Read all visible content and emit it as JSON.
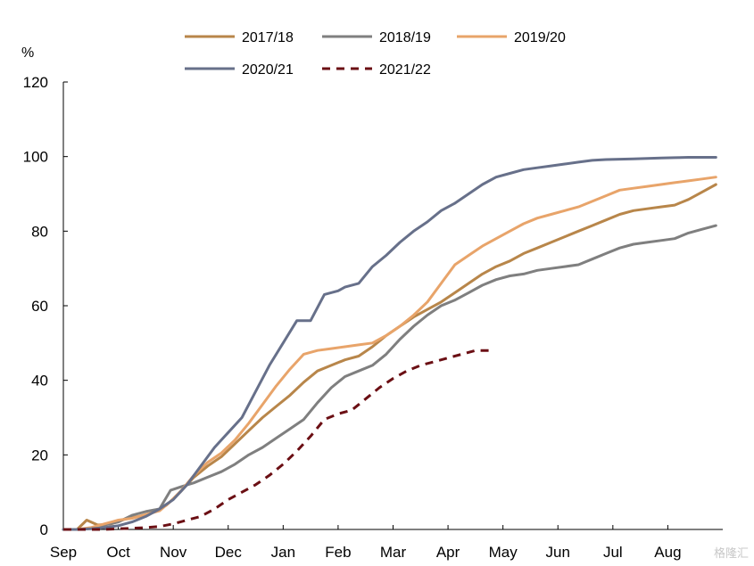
{
  "chart_data": {
    "type": "line",
    "title": "",
    "xlabel": "",
    "ylabel": "%",
    "ylim": [
      0,
      120
    ],
    "yticks": [
      0,
      20,
      40,
      60,
      80,
      100,
      120
    ],
    "xlim": [
      0,
      48
    ],
    "x_tick_labels": [
      {
        "x": 0,
        "label": "Sep"
      },
      {
        "x": 4,
        "label": "Oct"
      },
      {
        "x": 8,
        "label": "Nov"
      },
      {
        "x": 12,
        "label": "Dec"
      },
      {
        "x": 16,
        "label": "Jan"
      },
      {
        "x": 20,
        "label": "Feb"
      },
      {
        "x": 24,
        "label": "Mar"
      },
      {
        "x": 28,
        "label": "Apr"
      },
      {
        "x": 32,
        "label": "May"
      },
      {
        "x": 36,
        "label": "Jun"
      },
      {
        "x": 40,
        "label": "Jul"
      },
      {
        "x": 44,
        "label": "Aug"
      }
    ],
    "grid": false,
    "legend_position": "top",
    "series": [
      {
        "name": "2017/18",
        "color": "#b8864a",
        "dash": "solid",
        "x": [
          0,
          1,
          1.7,
          2.5,
          3.5,
          4.5,
          5.5,
          6.5,
          7.5,
          8.5,
          9.5,
          10.5,
          11.5,
          12.5,
          13.5,
          14.5,
          15.5,
          16.5,
          17.5,
          18.5,
          19.5,
          20.5,
          21.5,
          22.5,
          23.5,
          24.5,
          25.5,
          26.5,
          27.5,
          28.5,
          29.5,
          30.5,
          31.5,
          32.5,
          33.5,
          34.5,
          35.5,
          36.5,
          37.5,
          38.5,
          39.5,
          40.5,
          41.5,
          42.5,
          43.5,
          44.5,
          45.5,
          46.5,
          47.5
        ],
        "values": [
          0,
          0,
          2.5,
          1.2,
          1.5,
          2.8,
          3.5,
          4.5,
          6.5,
          10,
          14,
          17,
          19.5,
          23,
          26.5,
          30,
          33,
          36,
          39.5,
          42.5,
          44,
          45.5,
          46.5,
          49,
          52,
          54.5,
          57,
          59,
          61,
          63.5,
          66,
          68.5,
          70.5,
          72,
          74,
          75.5,
          77,
          78.5,
          80,
          81.5,
          83,
          84.5,
          85.5,
          86,
          86.5,
          87,
          88.5,
          90.5,
          92.5
        ]
      },
      {
        "name": "2018/19",
        "color": "#7f7f7f",
        "dash": "solid",
        "x": [
          0,
          1,
          2,
          3,
          4,
          5,
          6,
          7,
          7.8,
          8.6,
          9.5,
          10.5,
          11.5,
          12.5,
          13.5,
          14.5,
          15.5,
          16.5,
          17.5,
          18.5,
          19.5,
          20.5,
          21.5,
          22.5,
          23.5,
          24.5,
          25.5,
          26.5,
          27.5,
          28.5,
          29.5,
          30.5,
          31.5,
          32.5,
          33.5,
          34.5,
          35.5,
          36.5,
          37.5,
          38.5,
          39.5,
          40.5,
          41.5,
          42.5,
          43.5,
          44.5,
          45.5,
          46.5,
          47.5
        ],
        "values": [
          0,
          0,
          0.3,
          1.2,
          2,
          3.8,
          4.8,
          5.5,
          10.5,
          11.5,
          12.5,
          14,
          15.5,
          17.5,
          20,
          22,
          24.5,
          27,
          29.5,
          34,
          38,
          41,
          42.5,
          44,
          47,
          51,
          54.5,
          57.5,
          60,
          61.5,
          63.5,
          65.5,
          67,
          68,
          68.5,
          69.5,
          70,
          70.5,
          71,
          72.5,
          74,
          75.5,
          76.5,
          77,
          77.5,
          78,
          79.5,
          80.5,
          81.5
        ]
      },
      {
        "name": "2019/20",
        "color": "#e8a46a",
        "dash": "solid",
        "x": [
          0,
          1,
          2,
          3,
          4,
          5,
          6,
          7,
          7.8,
          8.6,
          9.5,
          10.5,
          11.5,
          12.5,
          13.5,
          14.5,
          15.5,
          16.5,
          17.5,
          18.5,
          19.5,
          20.5,
          21.5,
          22.5,
          23.5,
          24.5,
          25.5,
          26.5,
          27.5,
          28.5,
          29.5,
          30.5,
          31.5,
          32.5,
          33.5,
          34.5,
          35.5,
          36.5,
          37.5,
          38.5,
          39.5,
          40.5,
          41.5,
          42.5,
          43.5,
          44.5,
          45.5,
          46.5,
          47.5
        ],
        "values": [
          0,
          0,
          0.5,
          1.5,
          2.5,
          3,
          4,
          5,
          7.5,
          10.5,
          14.5,
          18,
          20.5,
          24,
          28.5,
          33.5,
          38.5,
          43,
          47,
          48,
          48.5,
          49,
          49.5,
          50,
          52,
          54.5,
          57.5,
          61,
          66,
          71,
          73.5,
          76,
          78,
          80,
          82,
          83.5,
          84.5,
          85.5,
          86.5,
          88,
          89.5,
          91,
          91.5,
          92,
          92.5,
          93,
          93.5,
          94,
          94.5
        ]
      },
      {
        "name": "2020/21",
        "color": "#67708a",
        "dash": "solid",
        "x": [
          0,
          1,
          2,
          3,
          4,
          5,
          6,
          7,
          8,
          9,
          10,
          11,
          12,
          13,
          14,
          15,
          16,
          17,
          18,
          19,
          20,
          20.5,
          21.5,
          22.5,
          23.5,
          24.5,
          25.5,
          26.5,
          27.5,
          28.5,
          29.5,
          30.5,
          31.5,
          32.5,
          33.5,
          34.5,
          35.5,
          36.5,
          37.5,
          38.5,
          39.5,
          40.5,
          41.5,
          42.5,
          43.5,
          44.5,
          45.5,
          46.5,
          47.5
        ],
        "values": [
          0,
          0,
          0.2,
          0.5,
          1,
          2,
          3.5,
          5.5,
          8,
          12,
          17,
          22,
          26,
          30,
          37,
          44,
          50,
          56,
          56,
          63,
          64,
          65,
          66,
          70.5,
          73.5,
          77,
          80,
          82.5,
          85.5,
          87.5,
          90,
          92.5,
          94.5,
          95.5,
          96.5,
          97,
          97.5,
          98,
          98.5,
          99,
          99.2,
          99.3,
          99.4,
          99.5,
          99.6,
          99.7,
          99.8,
          99.8,
          99.8
        ]
      },
      {
        "name": "2021/22",
        "color": "#6b0f14",
        "dash": "dashed",
        "x": [
          0,
          1,
          2,
          3,
          4,
          5,
          6,
          7,
          8,
          9,
          10,
          11,
          12,
          13,
          14,
          15,
          16,
          17,
          18,
          19,
          20,
          21,
          22,
          23,
          24,
          25,
          26,
          27,
          28,
          29,
          30,
          31
        ],
        "values": [
          0,
          0,
          0,
          0,
          0.2,
          0.3,
          0.5,
          0.8,
          1.5,
          2.5,
          3.5,
          5.5,
          8,
          10,
          12,
          14.5,
          17.5,
          21,
          25,
          29.5,
          31,
          32,
          35,
          38,
          40.5,
          42.5,
          44,
          45,
          46,
          47,
          48,
          48
        ]
      }
    ]
  },
  "watermark": "格隆汇"
}
